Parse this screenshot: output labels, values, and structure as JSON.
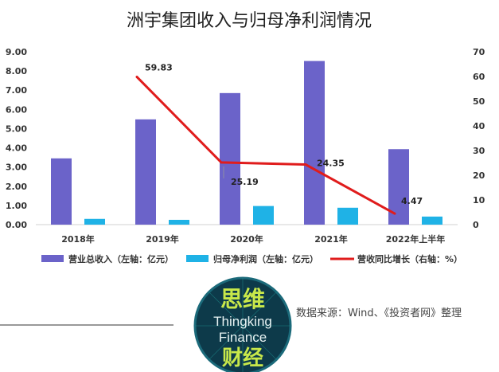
{
  "chart_data": {
    "type": "bar",
    "title": "洲宇集团收入与归母净利润情况",
    "categories": [
      "2018年",
      "2019年",
      "2020年",
      "2021年",
      "2022年上半年"
    ],
    "series": [
      {
        "name": "营业总收入（左轴：亿元）",
        "type": "bar",
        "axis": "left",
        "color": "#6b63c9",
        "values": [
          3.45,
          5.48,
          6.85,
          8.52,
          3.93
        ]
      },
      {
        "name": "归母净利润（左轴：亿元）",
        "type": "bar",
        "axis": "left",
        "color": "#1fb2e6",
        "values": [
          0.3,
          0.25,
          0.97,
          0.88,
          0.42
        ]
      },
      {
        "name": "营收同比增长（右轴：%）",
        "type": "line",
        "axis": "right",
        "color": "#e01c1c",
        "values": [
          null,
          59.83,
          25.19,
          24.35,
          4.47
        ]
      }
    ],
    "data_labels": [
      "59.83",
      "25.19",
      "24.35",
      "4.47"
    ],
    "y_left": {
      "min": 0,
      "max": 9,
      "step": 1,
      "ticks": [
        "0.00",
        "1.00",
        "2.00",
        "3.00",
        "4.00",
        "5.00",
        "6.00",
        "7.00",
        "8.00",
        "9.00"
      ]
    },
    "y_right": {
      "min": 0,
      "max": 70,
      "step": 10,
      "ticks": [
        "0",
        "10",
        "20",
        "30",
        "40",
        "50",
        "60",
        "70"
      ]
    },
    "legend_position": "bottom",
    "grid": false
  },
  "source_text": "数据来源：Wind、《投资者网》整理",
  "logo": {
    "line1": "思维",
    "line2": "Thingking",
    "line3": "Finance",
    "line4": "财经"
  }
}
